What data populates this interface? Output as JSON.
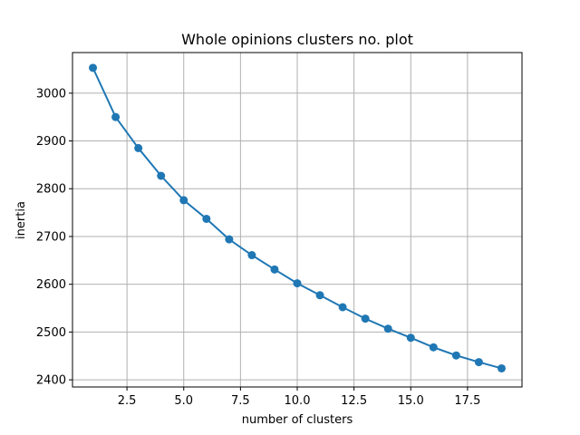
{
  "chart_data": {
    "type": "line",
    "title": "Whole opinions clusters no. plot",
    "xlabel": "number of clusters",
    "ylabel": "inertia",
    "xlim": [
      0.1,
      19.9
    ],
    "ylim": [
      2385,
      3085
    ],
    "xticks": [
      2.5,
      5.0,
      7.5,
      10.0,
      12.5,
      15.0,
      17.5
    ],
    "xtick_labels": [
      "2.5",
      "5.0",
      "7.5",
      "10.0",
      "12.5",
      "15.0",
      "17.5"
    ],
    "yticks": [
      2400,
      2500,
      2600,
      2700,
      2800,
      2900,
      3000
    ],
    "ytick_labels": [
      "2400",
      "2500",
      "2600",
      "2700",
      "2800",
      "2900",
      "3000"
    ],
    "grid": true,
    "series": [
      {
        "name": "inertia",
        "color": "#1f77b4",
        "marker": "circle",
        "x": [
          1,
          2,
          3,
          4,
          5,
          6,
          7,
          8,
          9,
          10,
          11,
          12,
          13,
          14,
          15,
          16,
          17,
          18,
          19
        ],
        "values": [
          3053,
          2950,
          2885,
          2827,
          2776,
          2737,
          2694,
          2661,
          2631,
          2602,
          2577,
          2552,
          2528,
          2507,
          2488,
          2468,
          2451,
          2437,
          2424
        ]
      }
    ]
  }
}
